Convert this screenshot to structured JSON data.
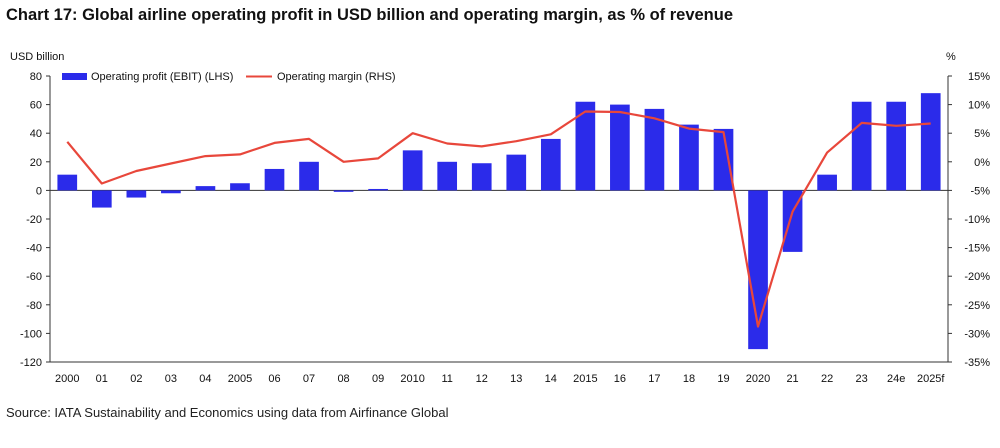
{
  "chart_data": {
    "type": "bar+line",
    "title": "Chart 17: Global airline operating profit in USD billion and operating margin, as % of revenue",
    "ylabel_left": "USD billion",
    "ylabel_right": "%",
    "ylim_left": [
      -120,
      80
    ],
    "ylim_right": [
      -35,
      15
    ],
    "yticks_left": [
      "80",
      "60",
      "40",
      "20",
      "0",
      "-20",
      "-40",
      "-60",
      "-80",
      "-100",
      "-120"
    ],
    "yticks_right": [
      "15%",
      "10%",
      "5%",
      "0%",
      "-5%",
      "-10%",
      "-15%",
      "-20%",
      "-25%",
      "-30%",
      "-35%"
    ],
    "categories": [
      "2000",
      "01",
      "02",
      "03",
      "04",
      "2005",
      "06",
      "07",
      "08",
      "09",
      "2010",
      "11",
      "12",
      "13",
      "14",
      "2015",
      "16",
      "17",
      "18",
      "19",
      "2020",
      "21",
      "22",
      "23",
      "24e",
      "2025f"
    ],
    "series": [
      {
        "name": "Operating profit (EBIT) (LHS)",
        "type": "bar",
        "axis": "left",
        "color": "#2b2bea",
        "values": [
          11,
          -12,
          -5,
          -2,
          3,
          5,
          15,
          20,
          -1,
          1,
          28,
          20,
          19,
          25,
          36,
          62,
          60,
          57,
          46,
          43,
          -111,
          -43,
          11,
          62,
          62,
          68
        ]
      },
      {
        "name": "Operating margin (RHS)",
        "type": "line",
        "axis": "right",
        "color": "#e8473b",
        "values": [
          3.5,
          -3.8,
          -1.6,
          -0.3,
          1.0,
          1.3,
          3.3,
          4.0,
          0.0,
          0.6,
          5.0,
          3.2,
          2.7,
          3.6,
          4.8,
          8.8,
          8.7,
          7.6,
          5.8,
          5.2,
          -28.8,
          -8.7,
          1.6,
          6.8,
          6.3,
          6.7
        ]
      }
    ],
    "legend_position": "top-left",
    "grid": false
  },
  "source": "Source: IATA Sustainability and Economics using data from Airfinance Global"
}
